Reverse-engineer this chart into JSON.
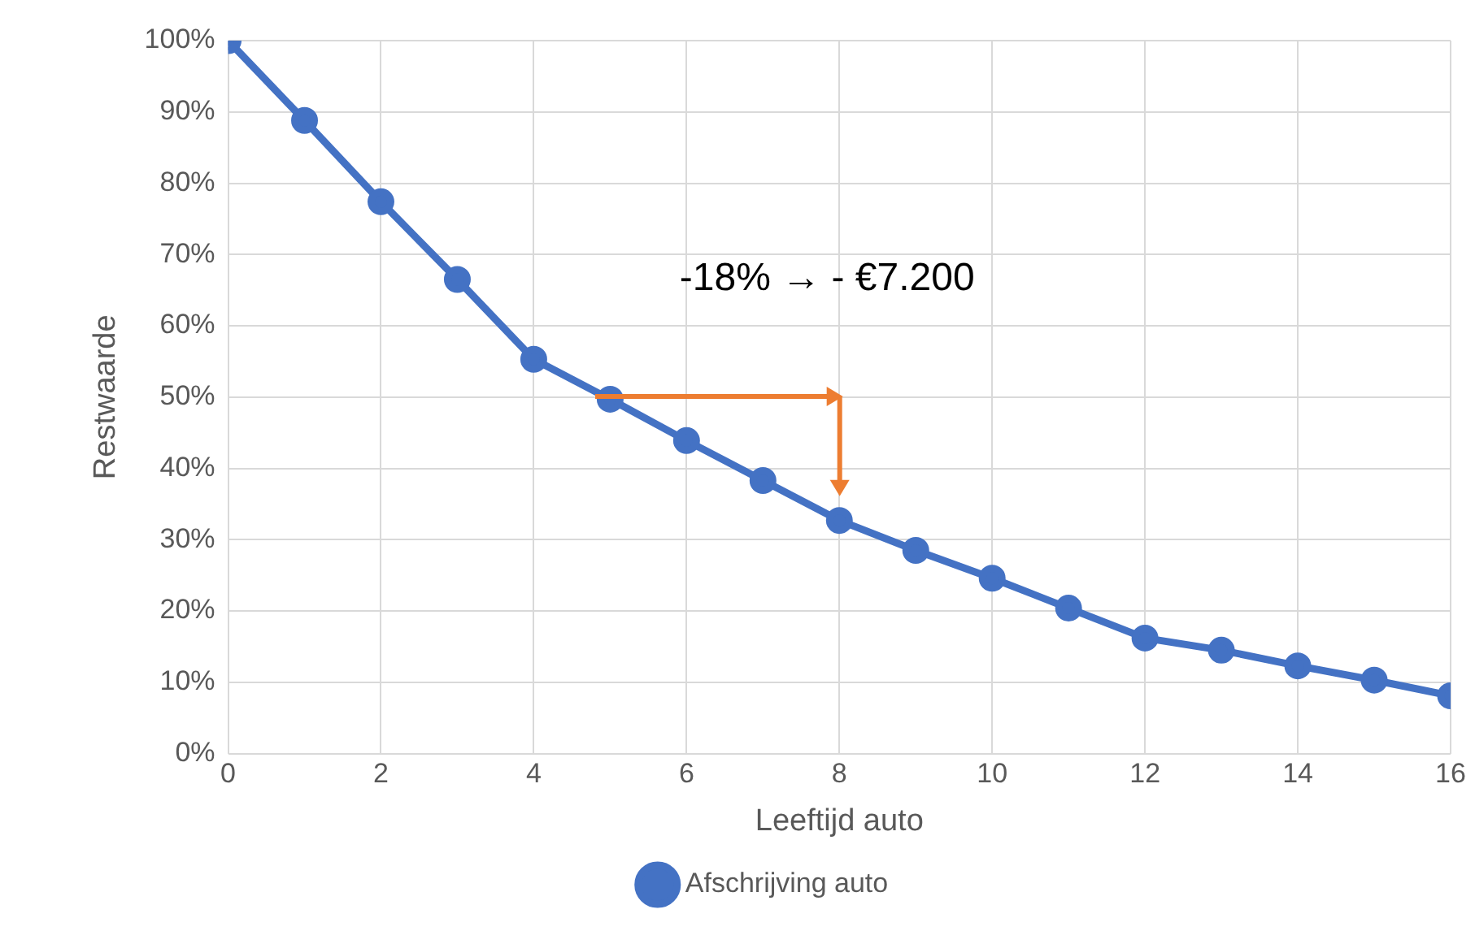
{
  "chart_data": {
    "type": "line",
    "xlabel": "Leeftijd auto",
    "ylabel": "Restwaarde",
    "x": [
      0,
      1,
      2,
      3,
      4,
      5,
      6,
      7,
      8,
      9,
      10,
      11,
      12,
      13,
      14,
      15,
      16
    ],
    "series": [
      {
        "name": "Afschrijving auto",
        "color": "#4472c4",
        "values": [
          100,
          88.8,
          77.4,
          66.5,
          55.3,
          49.7,
          43.9,
          38.3,
          32.7,
          28.5,
          24.6,
          20.4,
          16.2,
          14.5,
          12.3,
          10.3,
          8.1
        ]
      }
    ],
    "xlim": [
      0,
      16
    ],
    "xticks": [
      0,
      2,
      4,
      6,
      8,
      10,
      12,
      14,
      16
    ],
    "ylim": [
      0,
      100
    ],
    "yticks": [
      {
        "value": 0,
        "label": "0%"
      },
      {
        "value": 10,
        "label": "10%"
      },
      {
        "value": 20,
        "label": "20%"
      },
      {
        "value": 30,
        "label": "30%"
      },
      {
        "value": 40,
        "label": "40%"
      },
      {
        "value": 50,
        "label": "50%"
      },
      {
        "value": 60,
        "label": "60%"
      },
      {
        "value": 70,
        "label": "70%"
      },
      {
        "value": 80,
        "label": "80%"
      },
      {
        "value": 90,
        "label": "90%"
      },
      {
        "value": 100,
        "label": "100%"
      }
    ],
    "annotations": [
      "-18% → - €7.200"
    ],
    "grid": true,
    "legend": "bottom",
    "marker": "circle",
    "line_style": "solid"
  }
}
